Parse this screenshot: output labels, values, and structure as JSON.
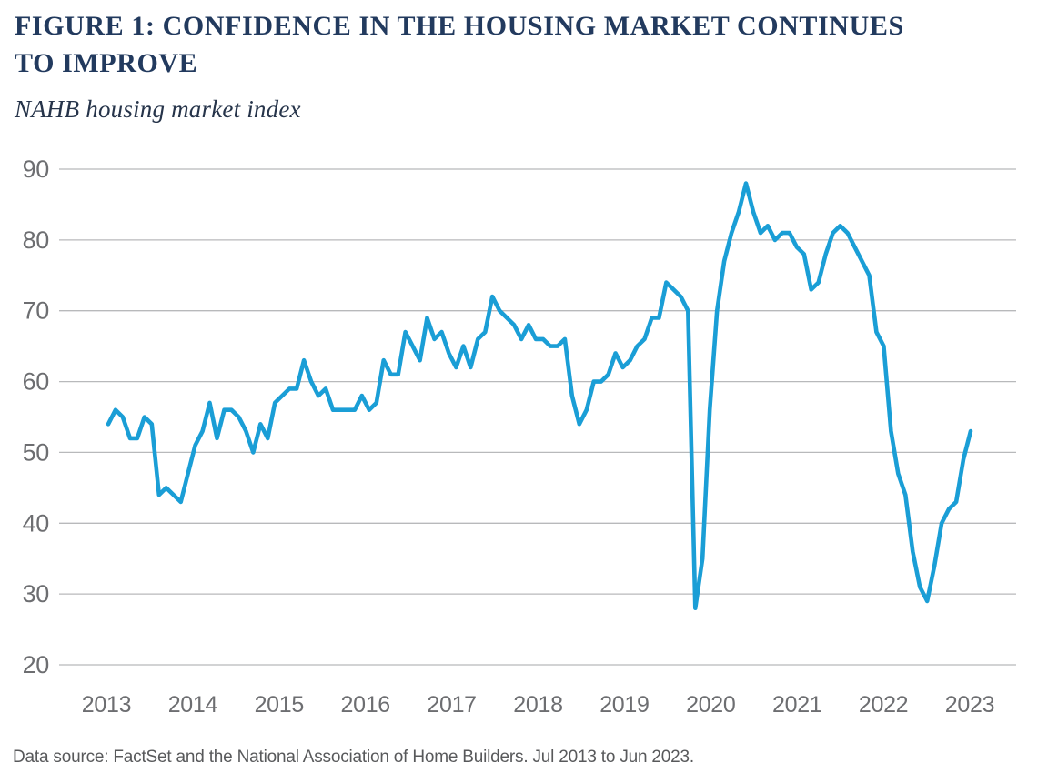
{
  "page": {
    "background": "#FFFFFF"
  },
  "figure": {
    "title_lines": [
      "FIGURE 1: CONFIDENCE IN THE HOUSING MARKET CONTINUES",
      "TO IMPROVE"
    ],
    "subtitle": "NAHB housing market index",
    "source_note": "Data source: FactSet and the National Association of Home Builders. Jul 2013 to Jun 2023."
  },
  "colors": {
    "title": "#223A5E",
    "subtitle": "#26344A",
    "axis_text": "#6D6E71",
    "gridline": "#B8B9BB",
    "line": "#1A9ED6",
    "source_text": "#58595B",
    "background": "#FFFFFF"
  },
  "chart_data": {
    "type": "line",
    "title": "NAHB housing market index",
    "x_start": "2013-07",
    "x_end": "2023-06",
    "frequency": "monthly",
    "x_tick_labels": [
      "2013",
      "2014",
      "2015",
      "2016",
      "2017",
      "2018",
      "2019",
      "2020",
      "2021",
      "2022",
      "2023"
    ],
    "y_ticks": [
      90,
      80,
      70,
      60,
      50,
      40,
      30,
      20
    ],
    "ylim": [
      20,
      90
    ],
    "grid": "horizontal-only",
    "legend": "none",
    "line_color": "#1A9ED6",
    "series": [
      {
        "name": "NAHB housing market index",
        "values": [
          54,
          56,
          55,
          52,
          52,
          55,
          54,
          44,
          45,
          44,
          43,
          47,
          51,
          53,
          57,
          52,
          56,
          56,
          55,
          53,
          50,
          54,
          52,
          57,
          58,
          59,
          59,
          63,
          60,
          58,
          59,
          56,
          56,
          56,
          56,
          58,
          56,
          57,
          63,
          61,
          61,
          67,
          65,
          63,
          69,
          66,
          67,
          64,
          62,
          65,
          62,
          66,
          67,
          72,
          70,
          69,
          68,
          66,
          68,
          66,
          66,
          65,
          65,
          66,
          58,
          54,
          56,
          60,
          60,
          61,
          64,
          62,
          63,
          65,
          66,
          69,
          69,
          74,
          73,
          72,
          70,
          28,
          35,
          56,
          70,
          77,
          81,
          84,
          88,
          84,
          81,
          82,
          80,
          81,
          81,
          79,
          78,
          73,
          74,
          78,
          81,
          82,
          81,
          79,
          77,
          75,
          67,
          65,
          53,
          47,
          44,
          36,
          31,
          29,
          34,
          40,
          42,
          43,
          49,
          53
        ]
      }
    ]
  }
}
